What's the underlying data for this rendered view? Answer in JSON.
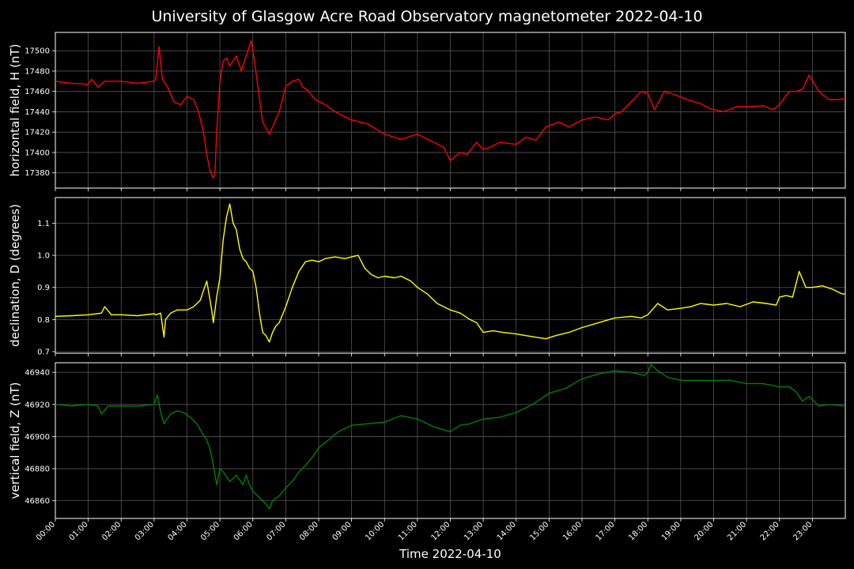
{
  "chart_data": [
    {
      "type": "line",
      "title": "University of Glasgow Acre Road Observatory magnetometer 2022-04-10",
      "ylabel": "horizontal field, H (nT)",
      "ylim": [
        17365,
        17518
      ],
      "yticks": [
        17380,
        17400,
        17420,
        17440,
        17460,
        17480,
        17500
      ],
      "grid": true,
      "series": [
        {
          "color": "#ff0000",
          "x": [
            0,
            0.5,
            1,
            1.1,
            1.3,
            1.5,
            2,
            2.5,
            3,
            3.05,
            3.15,
            3.25,
            3.4,
            3.6,
            3.8,
            4,
            4.2,
            4.35,
            4.5,
            4.6,
            4.7,
            4.8,
            4.85,
            4.9,
            5,
            5.1,
            5.2,
            5.3,
            5.5,
            5.65,
            5.8,
            5.95,
            6.05,
            6.15,
            6.3,
            6.5,
            6.6,
            6.8,
            7,
            7.2,
            7.4,
            7.5,
            7.7,
            7.9,
            8.2,
            8.5,
            9,
            9.5,
            10,
            10.5,
            11,
            11.5,
            11.8,
            12,
            12.3,
            12.5,
            12.8,
            13,
            13.2,
            13.5,
            14,
            14.3,
            14.6,
            14.9,
            15.3,
            15.6,
            16,
            16.4,
            16.8,
            17,
            17.2,
            17.5,
            17.8,
            18,
            18.2,
            18.5,
            18.8,
            19.2,
            19.6,
            19.9,
            20.3,
            20.7,
            21.1,
            21.5,
            21.8,
            22,
            22.3,
            22.5,
            22.7,
            22.9,
            23.2,
            23.5,
            23.8,
            24
          ],
          "values": [
            17470,
            17468,
            17467,
            17472,
            17464,
            17470,
            17470,
            17468,
            17470,
            17472,
            17504,
            17472,
            17465,
            17450,
            17447,
            17455,
            17452,
            17440,
            17420,
            17398,
            17382,
            17375,
            17380,
            17420,
            17470,
            17490,
            17493,
            17485,
            17495,
            17480,
            17495,
            17510,
            17490,
            17465,
            17430,
            17418,
            17425,
            17440,
            17465,
            17470,
            17472,
            17465,
            17460,
            17452,
            17447,
            17440,
            17432,
            17428,
            17418,
            17413,
            17418,
            17410,
            17405,
            17392,
            17400,
            17398,
            17410,
            17403,
            17405,
            17410,
            17408,
            17415,
            17412,
            17425,
            17430,
            17425,
            17432,
            17435,
            17432,
            17438,
            17440,
            17450,
            17460,
            17458,
            17442,
            17460,
            17457,
            17452,
            17448,
            17443,
            17440,
            17445,
            17445,
            17446,
            17442,
            17447,
            17460,
            17460,
            17462,
            17476,
            17460,
            17452,
            17452,
            17453
          ]
        }
      ]
    },
    {
      "type": "line",
      "ylabel": "declination, D (degrees)",
      "ylim": [
        0.695,
        1.18
      ],
      "yticks": [
        0.7,
        0.8,
        0.9,
        1.0,
        1.1
      ],
      "grid": true,
      "series": [
        {
          "color": "#ffff00",
          "x": [
            0,
            0.5,
            1,
            1.4,
            1.5,
            1.7,
            2,
            2.5,
            3,
            3.05,
            3.2,
            3.3,
            3.35,
            3.5,
            3.7,
            4,
            4.2,
            4.4,
            4.5,
            4.6,
            4.75,
            4.8,
            4.9,
            5,
            5.1,
            5.2,
            5.3,
            5.4,
            5.5,
            5.6,
            5.7,
            5.8,
            5.9,
            6,
            6.1,
            6.2,
            6.3,
            6.4,
            6.5,
            6.6,
            6.7,
            6.8,
            7,
            7.2,
            7.4,
            7.6,
            7.8,
            8,
            8.2,
            8.5,
            8.8,
            9,
            9.2,
            9.4,
            9.6,
            9.8,
            10,
            10.3,
            10.5,
            10.8,
            11,
            11.3,
            11.6,
            12,
            12.3,
            12.6,
            12.8,
            13,
            13.3,
            13.6,
            14,
            14.3,
            14.6,
            14.9,
            15.2,
            15.6,
            16,
            16.5,
            17,
            17.5,
            17.8,
            18,
            18.3,
            18.6,
            19,
            19.3,
            19.6,
            20,
            20.4,
            20.8,
            21.2,
            21.6,
            21.9,
            22,
            22.2,
            22.4,
            22.6,
            22.8,
            23,
            23.3,
            23.6,
            23.9,
            24
          ],
          "values": [
            0.81,
            0.812,
            0.815,
            0.82,
            0.84,
            0.815,
            0.815,
            0.812,
            0.818,
            0.815,
            0.82,
            0.745,
            0.8,
            0.82,
            0.83,
            0.83,
            0.84,
            0.86,
            0.89,
            0.92,
            0.83,
            0.79,
            0.87,
            0.93,
            1.05,
            1.12,
            1.16,
            1.1,
            1.08,
            1.02,
            0.99,
            0.98,
            0.96,
            0.95,
            0.9,
            0.82,
            0.76,
            0.75,
            0.73,
            0.76,
            0.78,
            0.79,
            0.84,
            0.9,
            0.95,
            0.98,
            0.985,
            0.98,
            0.99,
            0.995,
            0.99,
            0.995,
            1.0,
            0.96,
            0.94,
            0.93,
            0.935,
            0.93,
            0.935,
            0.92,
            0.9,
            0.88,
            0.85,
            0.83,
            0.82,
            0.8,
            0.79,
            0.76,
            0.765,
            0.76,
            0.755,
            0.75,
            0.745,
            0.74,
            0.75,
            0.76,
            0.775,
            0.79,
            0.805,
            0.81,
            0.805,
            0.815,
            0.85,
            0.83,
            0.835,
            0.84,
            0.85,
            0.845,
            0.85,
            0.84,
            0.855,
            0.85,
            0.845,
            0.87,
            0.875,
            0.87,
            0.95,
            0.9,
            0.9,
            0.905,
            0.895,
            0.88,
            0.88
          ]
        }
      ]
    },
    {
      "type": "line",
      "ylabel": "vertical field, Z (nT)",
      "xlabel": "Time 2022-04-10",
      "ylim": [
        46849,
        46946
      ],
      "yticks": [
        46860,
        46880,
        46900,
        46920,
        46940
      ],
      "xticks": [
        "00:00",
        "01:00",
        "02:00",
        "03:00",
        "04:00",
        "05:00",
        "06:00",
        "07:00",
        "08:00",
        "09:00",
        "10:00",
        "11:00",
        "12:00",
        "13:00",
        "14:00",
        "15:00",
        "16:00",
        "17:00",
        "18:00",
        "19:00",
        "20:00",
        "21:00",
        "22:00",
        "23:00"
      ],
      "xlim": [
        0,
        24
      ],
      "grid": true,
      "series": [
        {
          "color": "#008000",
          "x": [
            0,
            0.5,
            1,
            1.3,
            1.4,
            1.6,
            2,
            2.5,
            3,
            3.1,
            3.2,
            3.3,
            3.5,
            3.7,
            3.9,
            4.1,
            4.3,
            4.5,
            4.6,
            4.7,
            4.8,
            4.9,
            5,
            5.1,
            5.3,
            5.5,
            5.7,
            5.8,
            5.9,
            6,
            6.2,
            6.4,
            6.5,
            6.6,
            6.8,
            7,
            7.2,
            7.4,
            7.6,
            7.8,
            8,
            8.3,
            8.6,
            9,
            9.5,
            10,
            10.5,
            11,
            11.5,
            12,
            12.3,
            12.6,
            13,
            13.5,
            14,
            14.5,
            15,
            15.5,
            16,
            16.5,
            17,
            17.5,
            17.9,
            18,
            18.1,
            18.3,
            18.6,
            19,
            19.5,
            20,
            20.5,
            21,
            21.5,
            22,
            22.3,
            22.5,
            22.7,
            22.9,
            23.2,
            23.5,
            24
          ],
          "values": [
            46920,
            46919,
            46920,
            46919,
            46914,
            46919,
            46919,
            46919,
            46920,
            46926,
            46915,
            46908,
            46914,
            46916,
            46915,
            46912,
            46908,
            46901,
            46898,
            46892,
            46882,
            46870,
            46880,
            46878,
            46872,
            46876,
            46870,
            46876,
            46870,
            46866,
            46862,
            46858,
            46855,
            46860,
            46863,
            46868,
            46872,
            46878,
            46882,
            46887,
            46893,
            46898,
            46903,
            46907,
            46908,
            46909,
            46913,
            46911,
            46906,
            46903,
            46907,
            46908,
            46911,
            46912,
            46915,
            46920,
            46927,
            46930,
            46936,
            46939,
            46941,
            46940,
            46938,
            46940,
            46945,
            46941,
            46937,
            46935,
            46935,
            46935,
            46935,
            46933,
            46933,
            46931,
            46931,
            46928,
            46922,
            46925,
            46919,
            46920,
            46919
          ]
        }
      ]
    }
  ]
}
